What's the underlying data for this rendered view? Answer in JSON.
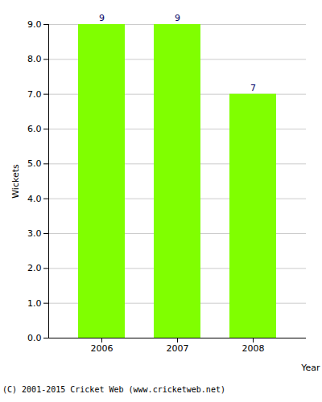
{
  "chart_data": {
    "type": "bar",
    "categories": [
      "2006",
      "2007",
      "2008"
    ],
    "values": [
      9,
      9,
      7
    ],
    "color": "#80ff00",
    "x_label": "Year",
    "y_label": "Wickets",
    "ylim": [
      0,
      9
    ],
    "yticks": [
      {
        "value": 0,
        "label": "0.0"
      },
      {
        "value": 1,
        "label": "1.0"
      },
      {
        "value": 2,
        "label": "2.0"
      },
      {
        "value": 3,
        "label": "3.0"
      },
      {
        "value": 4,
        "label": "4.0"
      },
      {
        "value": 5,
        "label": "5.0"
      },
      {
        "value": 6,
        "label": "6.0"
      },
      {
        "value": 7,
        "label": "7.0"
      },
      {
        "value": 8,
        "label": "8.0"
      },
      {
        "value": 9,
        "label": "9.0"
      }
    ],
    "grid": true,
    "data_labels": true,
    "caption": "(C) 2001-2015 Cricket Web (www.cricketweb.net)"
  }
}
